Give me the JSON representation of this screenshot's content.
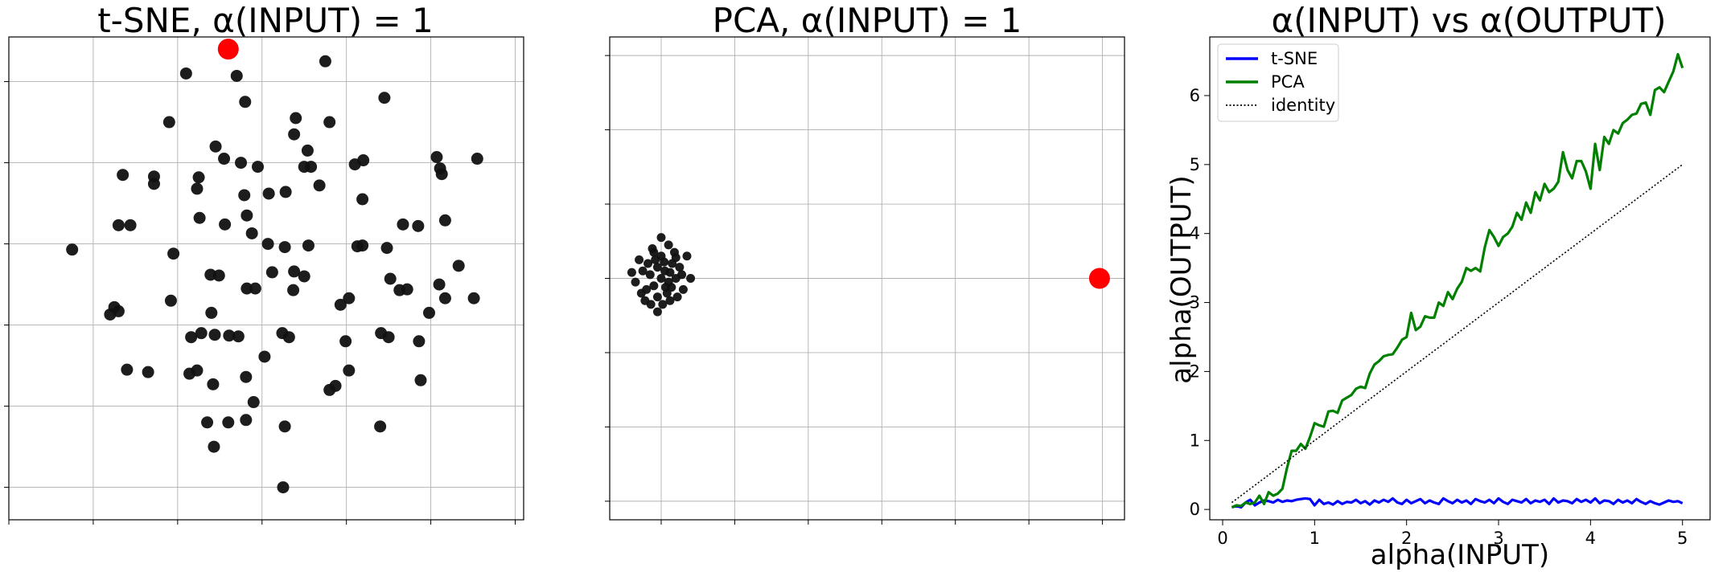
{
  "chart_data": [
    {
      "type": "scatter",
      "title": "t-SNE, α(INPUT) = 1",
      "xlim": [
        -3.0,
        3.1
      ],
      "ylim": [
        -3.4,
        2.55
      ],
      "grid": true,
      "tick_labels_visible": false,
      "point_color": "#111111",
      "highlight_color": "#ff0000",
      "highlight": {
        "x": -0.4,
        "y": 2.4
      },
      "points": [
        [
          -0.9,
          2.1
        ],
        [
          -0.3,
          2.07
        ],
        [
          0.75,
          2.25
        ],
        [
          -0.2,
          1.75
        ],
        [
          1.45,
          1.8
        ],
        [
          -1.1,
          1.5
        ],
        [
          0.4,
          1.55
        ],
        [
          0.8,
          1.5
        ],
        [
          0.38,
          1.35
        ],
        [
          -0.55,
          1.2
        ],
        [
          0.54,
          1.15
        ],
        [
          -0.45,
          1.05
        ],
        [
          -0.25,
          1.0
        ],
        [
          -0.05,
          0.95
        ],
        [
          0.5,
          0.95
        ],
        [
          0.58,
          0.95
        ],
        [
          1.1,
          0.98
        ],
        [
          1.2,
          1.03
        ],
        [
          2.07,
          1.07
        ],
        [
          2.11,
          0.93
        ],
        [
          2.13,
          0.86
        ],
        [
          2.55,
          1.05
        ],
        [
          -1.65,
          0.85
        ],
        [
          -1.28,
          0.83
        ],
        [
          -1.28,
          0.74
        ],
        [
          -0.75,
          0.82
        ],
        [
          -0.77,
          0.68
        ],
        [
          0.68,
          0.72
        ],
        [
          -0.21,
          0.6
        ],
        [
          0.08,
          0.62
        ],
        [
          0.28,
          0.64
        ],
        [
          1.19,
          0.55
        ],
        [
          -0.74,
          0.32
        ],
        [
          -0.44,
          0.24
        ],
        [
          2.17,
          0.29
        ],
        [
          1.67,
          0.24
        ],
        [
          1.85,
          0.22
        ],
        [
          -2.25,
          -0.07
        ],
        [
          -1.7,
          0.23
        ],
        [
          -1.56,
          0.23
        ],
        [
          -0.12,
          0.13
        ],
        [
          0.07,
          0.0
        ],
        [
          0.27,
          -0.04
        ],
        [
          0.55,
          -0.02
        ],
        [
          1.13,
          -0.03
        ],
        [
          1.19,
          -0.02
        ],
        [
          -1.05,
          -0.12
        ],
        [
          1.48,
          -0.05
        ],
        [
          0.12,
          -0.35
        ],
        [
          0.38,
          -0.34
        ],
        [
          0.5,
          -0.4
        ],
        [
          2.33,
          -0.27
        ],
        [
          -0.61,
          -0.38
        ],
        [
          -0.51,
          -0.39
        ],
        [
          1.52,
          -0.43
        ],
        [
          2.1,
          -0.5
        ],
        [
          -0.18,
          -0.55
        ],
        [
          -0.08,
          -0.55
        ],
        [
          0.37,
          -0.57
        ],
        [
          1.63,
          -0.57
        ],
        [
          1.72,
          -0.56
        ],
        [
          -1.08,
          -0.7
        ],
        [
          0.93,
          -0.75
        ],
        [
          1.03,
          -0.67
        ],
        [
          -1.75,
          -0.78
        ],
        [
          -1.7,
          -0.83
        ],
        [
          -1.8,
          -0.87
        ],
        [
          -0.6,
          -0.85
        ],
        [
          1.98,
          -0.85
        ],
        [
          -0.84,
          -1.15
        ],
        [
          -0.72,
          -1.1
        ],
        [
          -0.39,
          -1.13
        ],
        [
          -0.56,
          -1.12
        ],
        [
          -0.28,
          -1.14
        ],
        [
          0.24,
          -1.1
        ],
        [
          0.32,
          -1.15
        ],
        [
          1.41,
          -1.1
        ],
        [
          1.5,
          -1.15
        ],
        [
          0.99,
          -1.2
        ],
        [
          1.86,
          -1.2
        ],
        [
          0.03,
          -1.39
        ],
        [
          -0.86,
          -1.6
        ],
        [
          -0.77,
          -1.56
        ],
        [
          1.03,
          -1.56
        ],
        [
          -1.6,
          -1.55
        ],
        [
          -1.35,
          -1.58
        ],
        [
          -0.19,
          -1.64
        ],
        [
          1.88,
          -1.68
        ],
        [
          -0.58,
          -1.73
        ],
        [
          0.8,
          -1.8
        ],
        [
          0.87,
          -1.75
        ],
        [
          -0.1,
          -1.95
        ],
        [
          -0.19,
          -2.17
        ],
        [
          -0.65,
          -2.2
        ],
        [
          -0.4,
          -2.2
        ],
        [
          1.4,
          -2.25
        ],
        [
          0.27,
          -2.25
        ],
        [
          -0.57,
          -2.5
        ],
        [
          0.25,
          -3.0
        ],
        [
          2.51,
          -0.67
        ],
        [
          2.17,
          -0.67
        ],
        [
          -0.18,
          0.35
        ]
      ]
    },
    {
      "type": "scatter",
      "title": "PCA, α(INPUT) = 1",
      "xlim": [
        -0.7,
        6.3
      ],
      "ylim": [
        -3.25,
        3.25
      ],
      "grid": true,
      "tick_labels_visible": false,
      "point_color": "#111111",
      "highlight_color": "#ff0000",
      "highlight": {
        "x": 5.96,
        "y": 0.0
      },
      "points": [
        [
          0.0,
          0.0
        ],
        [
          0.05,
          0.1
        ],
        [
          -0.05,
          0.15
        ],
        [
          0.1,
          -0.05
        ],
        [
          -0.1,
          -0.1
        ],
        [
          0.15,
          0.2
        ],
        [
          -0.15,
          0.05
        ],
        [
          0.08,
          -0.2
        ],
        [
          -0.08,
          0.25
        ],
        [
          0.2,
          0.0
        ],
        [
          -0.2,
          -0.15
        ],
        [
          0.0,
          0.3
        ],
        [
          0.12,
          -0.3
        ],
        [
          -0.25,
          0.1
        ],
        [
          0.25,
          0.15
        ],
        [
          0.02,
          -0.35
        ],
        [
          -0.12,
          0.4
        ],
        [
          0.3,
          -0.15
        ],
        [
          -0.3,
          0.25
        ],
        [
          0.18,
          0.35
        ],
        [
          -0.05,
          -0.25
        ],
        [
          0.1,
          0.45
        ],
        [
          -0.35,
          -0.05
        ],
        [
          0.22,
          -0.25
        ],
        [
          0.0,
          0.55
        ],
        [
          -0.05,
          -0.45
        ],
        [
          0.35,
          0.3
        ],
        [
          -0.22,
          -0.3
        ],
        [
          0.12,
          0.08
        ],
        [
          -0.1,
          0.35
        ],
        [
          -0.4,
          0.08
        ],
        [
          0.28,
          0.05
        ],
        [
          0.06,
          -0.12
        ],
        [
          -0.18,
          0.2
        ],
        [
          0.14,
          -0.12
        ],
        [
          0.4,
          0.0
        ],
        [
          -0.14,
          -0.35
        ],
        [
          0.2,
          0.28
        ],
        [
          -0.27,
          -0.2
        ],
        [
          0.04,
          0.22
        ]
      ]
    },
    {
      "type": "line",
      "title": "α(INPUT) vs α(OUTPUT)",
      "xlabel": "alpha(INPUT)",
      "ylabel": "alpha(OUTPUT)",
      "xlim": [
        -0.14,
        5.3
      ],
      "ylim": [
        -0.15,
        6.85
      ],
      "xticks": [
        0,
        1,
        2,
        3,
        4,
        5
      ],
      "yticks": [
        0,
        1,
        2,
        3,
        4,
        5,
        6
      ],
      "grid": false,
      "legend_position": "top-left",
      "x": [
        0.1,
        0.15,
        0.2,
        0.25,
        0.3,
        0.35,
        0.4,
        0.45,
        0.5,
        0.55,
        0.6,
        0.65,
        0.7,
        0.75,
        0.8,
        0.85,
        0.9,
        0.95,
        1.0,
        1.05,
        1.1,
        1.15,
        1.2,
        1.25,
        1.3,
        1.35,
        1.4,
        1.45,
        1.5,
        1.55,
        1.6,
        1.65,
        1.7,
        1.75,
        1.8,
        1.85,
        1.9,
        1.95,
        2.0,
        2.05,
        2.1,
        2.15,
        2.2,
        2.25,
        2.3,
        2.35,
        2.4,
        2.45,
        2.5,
        2.55,
        2.6,
        2.65,
        2.7,
        2.75,
        2.8,
        2.85,
        2.9,
        2.95,
        3.0,
        3.05,
        3.1,
        3.15,
        3.2,
        3.25,
        3.3,
        3.35,
        3.4,
        3.45,
        3.5,
        3.55,
        3.6,
        3.65,
        3.7,
        3.75,
        3.8,
        3.85,
        3.9,
        3.95,
        4.0,
        4.05,
        4.1,
        4.15,
        4.2,
        4.25,
        4.3,
        4.35,
        4.4,
        4.45,
        4.5,
        4.55,
        4.6,
        4.65,
        4.7,
        4.75,
        4.8,
        4.85,
        4.9,
        4.95,
        5.0
      ],
      "series": [
        {
          "name": "t-SNE",
          "color": "#0000ff",
          "style": "solid",
          "values": [
            0.03,
            0.05,
            0.03,
            0.1,
            0.14,
            0.06,
            0.1,
            0.13,
            0.12,
            0.1,
            0.14,
            0.11,
            0.13,
            0.12,
            0.14,
            0.15,
            0.16,
            0.15,
            0.06,
            0.14,
            0.08,
            0.1,
            0.07,
            0.12,
            0.08,
            0.11,
            0.1,
            0.14,
            0.09,
            0.12,
            0.07,
            0.13,
            0.1,
            0.14,
            0.11,
            0.16,
            0.1,
            0.08,
            0.14,
            0.09,
            0.12,
            0.15,
            0.09,
            0.13,
            0.1,
            0.08,
            0.16,
            0.12,
            0.09,
            0.14,
            0.1,
            0.13,
            0.08,
            0.15,
            0.12,
            0.1,
            0.14,
            0.09,
            0.16,
            0.11,
            0.08,
            0.14,
            0.12,
            0.1,
            0.15,
            0.09,
            0.13,
            0.11,
            0.14,
            0.08,
            0.16,
            0.1,
            0.13,
            0.12,
            0.09,
            0.15,
            0.11,
            0.14,
            0.1,
            0.16,
            0.09,
            0.13,
            0.12,
            0.08,
            0.14,
            0.1,
            0.13,
            0.09,
            0.15,
            0.11,
            0.08,
            0.12,
            0.09,
            0.07,
            0.1,
            0.13,
            0.11,
            0.12,
            0.09
          ]
        },
        {
          "name": "PCA",
          "color": "#008000",
          "style": "solid",
          "values": [
            0.03,
            0.06,
            0.05,
            0.1,
            0.08,
            0.1,
            0.2,
            0.08,
            0.25,
            0.2,
            0.23,
            0.3,
            0.6,
            0.85,
            0.85,
            0.95,
            0.88,
            1.05,
            1.25,
            1.22,
            1.2,
            1.42,
            1.43,
            1.4,
            1.58,
            1.62,
            1.66,
            1.75,
            1.78,
            1.76,
            1.97,
            2.1,
            2.15,
            2.22,
            2.24,
            2.25,
            2.35,
            2.46,
            2.5,
            2.85,
            2.6,
            2.65,
            2.8,
            2.78,
            2.78,
            3.0,
            2.95,
            3.15,
            3.05,
            3.2,
            3.3,
            3.5,
            3.46,
            3.5,
            3.45,
            3.8,
            4.05,
            3.95,
            3.82,
            3.95,
            4.0,
            4.1,
            4.3,
            4.2,
            4.45,
            4.3,
            4.6,
            4.48,
            4.72,
            4.6,
            4.65,
            4.75,
            5.18,
            4.92,
            4.8,
            5.05,
            5.05,
            4.9,
            4.65,
            5.3,
            4.92,
            5.4,
            5.3,
            5.5,
            5.45,
            5.6,
            5.65,
            5.72,
            5.74,
            5.88,
            5.9,
            5.72,
            6.08,
            6.12,
            6.05,
            6.2,
            6.35,
            6.6,
            6.4
          ]
        },
        {
          "name": "identity",
          "color": "#000000",
          "style": "dotted",
          "values": [
            0.1,
            0.15,
            0.2,
            0.25,
            0.3,
            0.35,
            0.4,
            0.45,
            0.5,
            0.55,
            0.6,
            0.65,
            0.7,
            0.75,
            0.8,
            0.85,
            0.9,
            0.95,
            1.0,
            1.05,
            1.1,
            1.15,
            1.2,
            1.25,
            1.3,
            1.35,
            1.4,
            1.45,
            1.5,
            1.55,
            1.6,
            1.65,
            1.7,
            1.75,
            1.8,
            1.85,
            1.9,
            1.95,
            2.0,
            2.05,
            2.1,
            2.15,
            2.2,
            2.25,
            2.3,
            2.35,
            2.4,
            2.45,
            2.5,
            2.55,
            2.6,
            2.65,
            2.7,
            2.75,
            2.8,
            2.85,
            2.9,
            2.95,
            3.0,
            3.05,
            3.1,
            3.15,
            3.2,
            3.25,
            3.3,
            3.35,
            3.4,
            3.45,
            3.5,
            3.55,
            3.6,
            3.65,
            3.7,
            3.75,
            3.8,
            3.85,
            3.9,
            3.95,
            4.0,
            4.05,
            4.1,
            4.15,
            4.2,
            4.25,
            4.3,
            4.35,
            4.4,
            4.45,
            4.5,
            4.55,
            4.6,
            4.65,
            4.7,
            4.75,
            4.8,
            4.85,
            4.9,
            4.95,
            5.0
          ]
        }
      ]
    }
  ]
}
